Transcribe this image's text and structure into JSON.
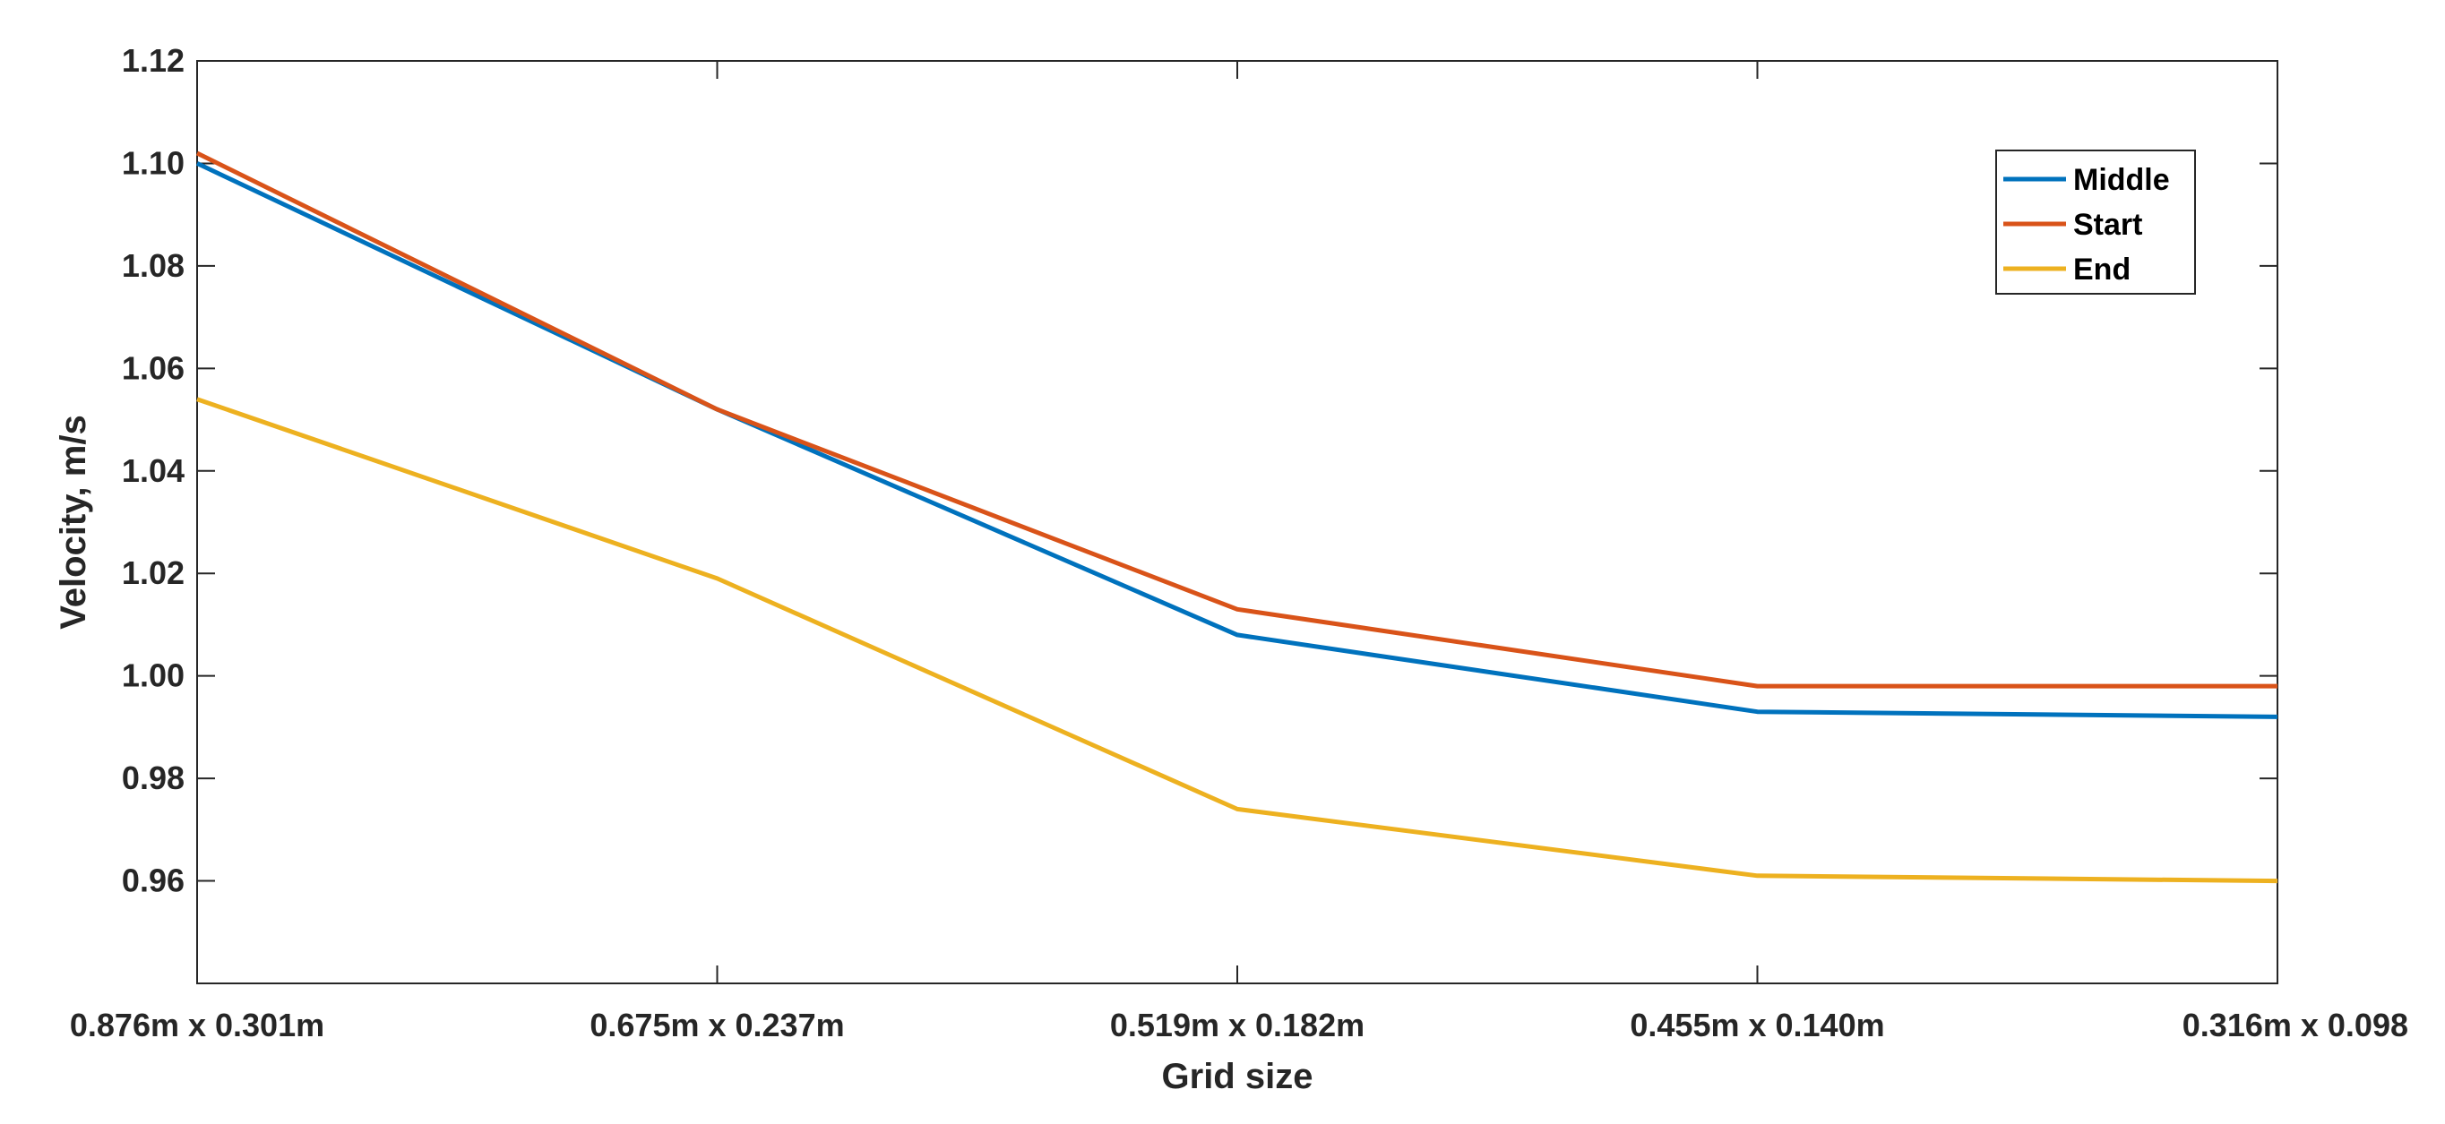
{
  "chart_data": {
    "type": "line",
    "xlabel": "Grid size",
    "ylabel": "Velocity, m/s",
    "categories": [
      "0.876m x 0.301m",
      "0.675m x 0.237m",
      "0.519m x 0.182m",
      "0.455m x 0.140m",
      "0.316m x 0.098"
    ],
    "ylim": [
      0.94,
      1.12
    ],
    "yticks": [
      "0.96",
      "0.98",
      "1.00",
      "1.02",
      "1.04",
      "1.06",
      "1.08",
      "1.10",
      "1.12"
    ],
    "grid": false,
    "legend_position": "top-right",
    "series": [
      {
        "name": "Middle",
        "color": "#0072BD",
        "values": [
          1.1,
          1.052,
          1.008,
          0.993,
          0.992
        ]
      },
      {
        "name": "Start",
        "color": "#D95319",
        "values": [
          1.102,
          1.052,
          1.013,
          0.998,
          0.998
        ]
      },
      {
        "name": "End",
        "color": "#EDB120",
        "values": [
          1.054,
          1.019,
          0.974,
          0.961,
          0.96
        ]
      }
    ]
  }
}
